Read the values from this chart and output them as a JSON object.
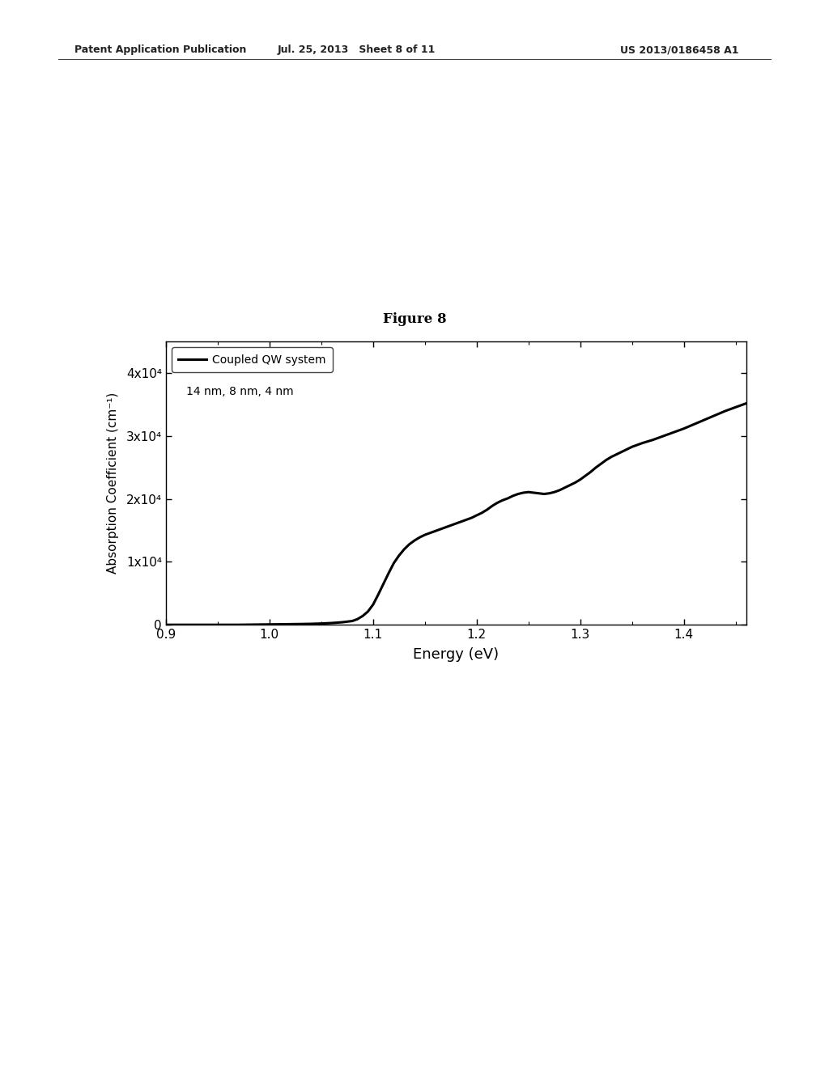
{
  "figure_label": "Figure 8",
  "patent_header_left": "Patent Application Publication",
  "patent_header_mid": "Jul. 25, 2013   Sheet 8 of 11",
  "patent_header_right": "US 2013/0186458 A1",
  "xlabel": "Energy (eV)",
  "ylabel": "Absorption Coefficient (cm⁻¹)",
  "xlim": [
    0.9,
    1.46
  ],
  "ylim": [
    0,
    45000
  ],
  "xticks": [
    0.9,
    1.0,
    1.1,
    1.2,
    1.3,
    1.4
  ],
  "yticks": [
    0,
    10000,
    20000,
    30000,
    40000
  ],
  "ytick_labels": [
    "0",
    "1x10⁴",
    "2x10⁴",
    "3x10⁴",
    "4x10⁴"
  ],
  "legend_line_label": "Coupled QW system",
  "legend_text": "14 nm, 8 nm, 4 nm",
  "line_color": "#000000",
  "line_width": 2.2,
  "bg_color": "#ffffff",
  "curve_x": [
    0.9,
    0.91,
    0.92,
    0.93,
    0.94,
    0.95,
    0.96,
    0.97,
    0.98,
    0.99,
    1.0,
    1.01,
    1.02,
    1.03,
    1.04,
    1.05,
    1.06,
    1.07,
    1.08,
    1.085,
    1.09,
    1.095,
    1.1,
    1.105,
    1.11,
    1.115,
    1.12,
    1.125,
    1.13,
    1.135,
    1.14,
    1.145,
    1.15,
    1.155,
    1.16,
    1.165,
    1.17,
    1.175,
    1.18,
    1.185,
    1.19,
    1.195,
    1.2,
    1.205,
    1.21,
    1.215,
    1.22,
    1.225,
    1.23,
    1.235,
    1.24,
    1.245,
    1.25,
    1.255,
    1.26,
    1.265,
    1.27,
    1.275,
    1.28,
    1.285,
    1.29,
    1.295,
    1.3,
    1.305,
    1.31,
    1.315,
    1.32,
    1.325,
    1.33,
    1.335,
    1.34,
    1.345,
    1.35,
    1.36,
    1.37,
    1.38,
    1.39,
    1.4,
    1.41,
    1.42,
    1.43,
    1.44,
    1.45,
    1.46
  ],
  "curve_y": [
    0,
    0,
    0,
    0,
    0,
    0,
    0,
    0,
    20,
    40,
    60,
    80,
    100,
    120,
    150,
    200,
    280,
    400,
    600,
    900,
    1400,
    2100,
    3200,
    4800,
    6500,
    8200,
    9800,
    11000,
    12000,
    12800,
    13400,
    13900,
    14300,
    14600,
    14900,
    15200,
    15500,
    15800,
    16100,
    16400,
    16700,
    17000,
    17400,
    17800,
    18300,
    18900,
    19400,
    19800,
    20100,
    20500,
    20800,
    21000,
    21100,
    21000,
    20900,
    20800,
    20900,
    21100,
    21400,
    21800,
    22200,
    22600,
    23100,
    23700,
    24300,
    25000,
    25600,
    26200,
    26700,
    27100,
    27500,
    27900,
    28300,
    28900,
    29400,
    30000,
    30600,
    31200,
    31900,
    32600,
    33300,
    34000,
    34600,
    35200
  ]
}
